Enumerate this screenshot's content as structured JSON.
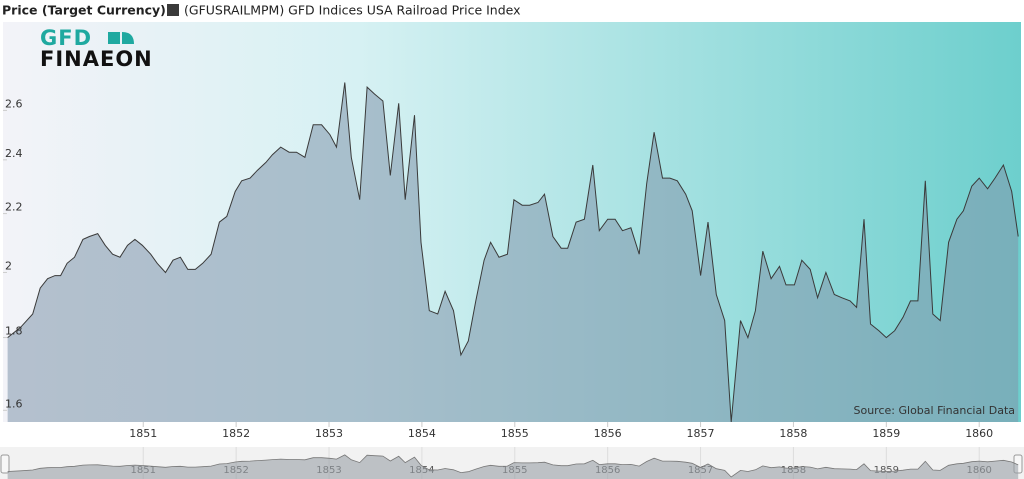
{
  "chart_data": {
    "type": "area",
    "y_label": "Price (Target Currency)",
    "source": "Source: Global Financial Data",
    "logo": [
      "GFD",
      "FINAEON"
    ],
    "log_scale": true,
    "xlim": [
      1849.49,
      1860.45
    ],
    "xticks": [
      1851,
      1852,
      1853,
      1854,
      1855,
      1856,
      1857,
      1858,
      1859,
      1860
    ],
    "ylim": [
      1.57,
      3.0
    ],
    "yticks": [
      1.6,
      1.8,
      2,
      2.2,
      2.4,
      2.6
    ],
    "x": [
      1849.54,
      1849.68,
      1849.81,
      1849.89,
      1849.97,
      1850.05,
      1850.11,
      1850.18,
      1850.26,
      1850.35,
      1850.42,
      1850.51,
      1850.59,
      1850.67,
      1850.75,
      1850.83,
      1850.91,
      1850.99,
      1851.08,
      1851.15,
      1851.24,
      1851.32,
      1851.4,
      1851.48,
      1851.56,
      1851.64,
      1851.73,
      1851.82,
      1851.9,
      1851.99,
      1852.06,
      1852.15,
      1852.23,
      1852.32,
      1852.39,
      1852.48,
      1852.57,
      1852.65,
      1852.74,
      1852.83,
      1852.92,
      1853.01,
      1853.08,
      1853.17,
      1853.24,
      1853.33,
      1853.41,
      1853.49,
      1853.58,
      1853.66,
      1853.75,
      1853.82,
      1853.92,
      1853.99,
      1854.08,
      1854.17,
      1854.25,
      1854.34,
      1854.42,
      1854.5,
      1854.58,
      1854.67,
      1854.74,
      1854.83,
      1854.92,
      1854.99,
      1855.08,
      1855.16,
      1855.25,
      1855.32,
      1855.41,
      1855.5,
      1855.57,
      1855.66,
      1855.75,
      1855.84,
      1855.91,
      1856.0,
      1856.08,
      1856.16,
      1856.25,
      1856.34,
      1856.42,
      1856.5,
      1856.59,
      1856.67,
      1856.75,
      1856.84,
      1856.91,
      1857.0,
      1857.08,
      1857.17,
      1857.26,
      1857.33,
      1857.43,
      1857.51,
      1857.59,
      1857.67,
      1857.76,
      1857.85,
      1857.92,
      1858.01,
      1858.09,
      1858.18,
      1858.26,
      1858.35,
      1858.44,
      1858.52,
      1858.61,
      1858.68,
      1858.76,
      1858.83,
      1858.92,
      1859.0,
      1859.09,
      1859.18,
      1859.26,
      1859.34,
      1859.42,
      1859.5,
      1859.58,
      1859.67,
      1859.76,
      1859.83,
      1859.92,
      1860.0,
      1860.09,
      1860.17,
      1860.26,
      1860.35,
      1860.42
    ],
    "series": [
      {
        "name": "(GFUSRAILMPM) GFD Indices USA Railroad Price Index",
        "color": "#3a3a3a",
        "values": [
          1.8,
          1.83,
          1.87,
          1.95,
          1.98,
          1.99,
          1.99,
          2.03,
          2.05,
          2.11,
          2.12,
          2.13,
          2.09,
          2.06,
          2.05,
          2.09,
          2.11,
          2.09,
          2.06,
          2.03,
          2.0,
          2.04,
          2.05,
          2.01,
          2.01,
          2.03,
          2.06,
          2.17,
          2.19,
          2.28,
          2.32,
          2.33,
          2.36,
          2.39,
          2.42,
          2.45,
          2.43,
          2.43,
          2.41,
          2.54,
          2.54,
          2.5,
          2.45,
          2.72,
          2.41,
          2.25,
          2.7,
          2.67,
          2.64,
          2.34,
          2.63,
          2.25,
          2.58,
          2.1,
          1.88,
          1.87,
          1.94,
          1.88,
          1.75,
          1.79,
          1.91,
          2.04,
          2.1,
          2.05,
          2.06,
          2.25,
          2.23,
          2.23,
          2.24,
          2.27,
          2.12,
          2.08,
          2.08,
          2.17,
          2.18,
          2.38,
          2.14,
          2.18,
          2.18,
          2.14,
          2.15,
          2.06,
          2.31,
          2.51,
          2.33,
          2.33,
          2.32,
          2.27,
          2.21,
          1.99,
          2.17,
          1.93,
          1.85,
          1.57,
          1.85,
          1.8,
          1.88,
          2.07,
          1.98,
          2.02,
          1.96,
          1.96,
          2.04,
          2.01,
          1.92,
          2.0,
          1.93,
          1.92,
          1.91,
          1.89,
          2.18,
          1.84,
          1.82,
          1.8,
          1.82,
          1.86,
          1.91,
          1.91,
          2.32,
          1.87,
          1.85,
          2.1,
          2.18,
          2.21,
          2.3,
          2.33,
          2.29,
          2.33,
          2.38,
          2.28,
          2.12
        ]
      }
    ]
  }
}
